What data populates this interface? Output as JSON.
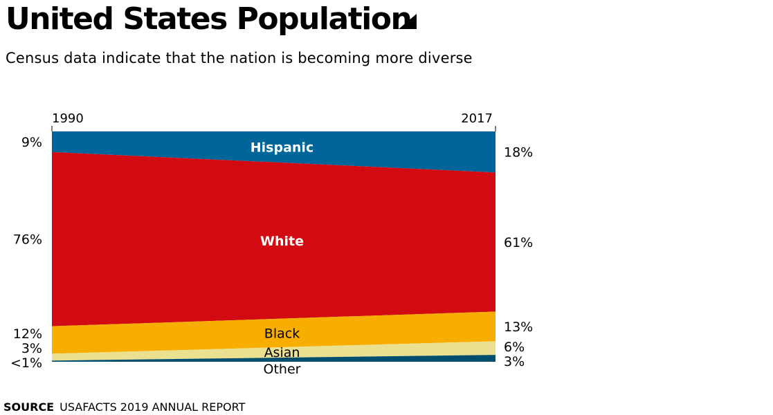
{
  "title": "United States Population",
  "subtitle": "Census data indicate that the nation is becoming more diverse",
  "source": {
    "label": "SOURCE",
    "text": "USAFACTS 2019 ANNUAL REPORT"
  },
  "colors": {
    "Hispanic": "#006699",
    "White": "#d20b12",
    "Black": "#f7ae00",
    "Asian": "#ebe08f",
    "Other": "#004e6e"
  },
  "chart_data": {
    "type": "area",
    "x": [
      "1990",
      "2017"
    ],
    "series": [
      {
        "name": "Hispanic",
        "values": [
          9,
          18
        ],
        "labels": [
          "9%",
          "18%"
        ]
      },
      {
        "name": "White",
        "values": [
          76,
          61
        ],
        "labels": [
          "76%",
          "61%"
        ]
      },
      {
        "name": "Black",
        "values": [
          12,
          13
        ],
        "labels": [
          "12%",
          "13%"
        ]
      },
      {
        "name": "Asian",
        "values": [
          3,
          6
        ],
        "labels": [
          "3%",
          "6%"
        ]
      },
      {
        "name": "Other",
        "values": [
          0.5,
          3
        ],
        "labels": [
          "<1%",
          "3%"
        ]
      }
    ],
    "stacked": "100%",
    "ylim": [
      0,
      100
    ]
  }
}
